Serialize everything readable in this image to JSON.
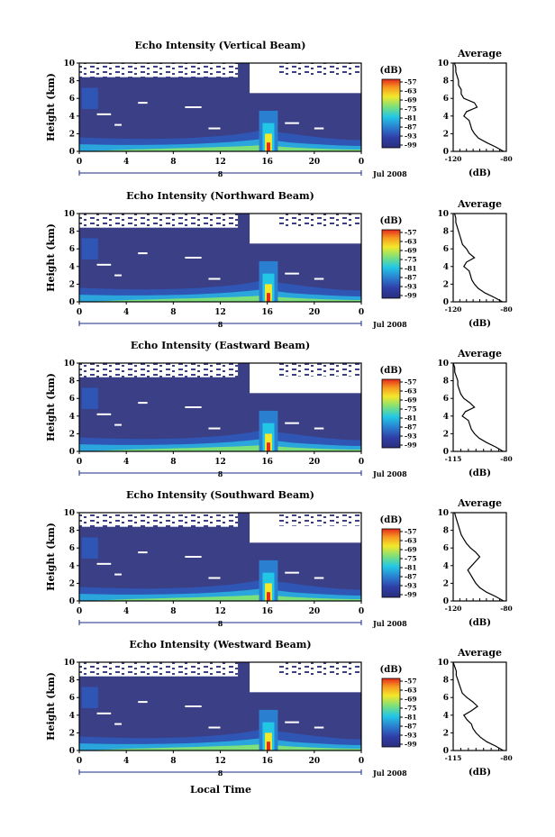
{
  "figure": {
    "bottom_label": "Local Time",
    "date_label": "Jul 2008",
    "height_label": "Height (km)",
    "avg_title": "Average",
    "avg_unit": "(dB)",
    "cb_unit": "(dB)",
    "day_label": "8"
  },
  "chart_data": [
    {
      "type": "heatmap",
      "title": "Echo Intensity (Vertical Beam)",
      "xlabel": "",
      "ylabel": "Height (km)",
      "x_ticks": [
        "0",
        "4",
        "8",
        "12",
        "16",
        "20",
        "0"
      ],
      "xlim": [
        0,
        24
      ],
      "y_ticks": [
        "0",
        "2",
        "4",
        "6",
        "8",
        "10"
      ],
      "ylim": [
        0,
        10
      ],
      "colorbar": {
        "unit": "(dB)",
        "ticks": [
          "-57",
          "-63",
          "-69",
          "-75",
          "-81",
          "-87",
          "-93",
          "-99"
        ]
      },
      "date": "Jul 2008",
      "average_profile": {
        "title": "Average",
        "xlabel": "(dB)",
        "xticks": [
          "-120",
          "-80"
        ],
        "xlim": [
          -120,
          -80
        ],
        "height_km": [
          0,
          0.5,
          1,
          1.5,
          2,
          2.5,
          3,
          3.5,
          4,
          4.5,
          5,
          5.5,
          6,
          6.5,
          7,
          7.5,
          8,
          8.5,
          9,
          9.5,
          10
        ],
        "db": [
          -82,
          -88,
          -95,
          -101,
          -104,
          -106,
          -107,
          -108,
          -112,
          -110,
          -102,
          -104,
          -112,
          -114,
          -114,
          -116,
          -116,
          -117,
          -118,
          -118,
          -119
        ]
      }
    },
    {
      "type": "heatmap",
      "title": "Echo Intensity (Northward Beam)",
      "xlabel": "",
      "ylabel": "Height (km)",
      "x_ticks": [
        "0",
        "4",
        "8",
        "12",
        "16",
        "20",
        "0"
      ],
      "xlim": [
        0,
        24
      ],
      "y_ticks": [
        "0",
        "2",
        "4",
        "6",
        "8",
        "10"
      ],
      "ylim": [
        0,
        10
      ],
      "colorbar": {
        "unit": "(dB)",
        "ticks": [
          "-57",
          "-63",
          "-69",
          "-75",
          "-81",
          "-87",
          "-93",
          "-99"
        ]
      },
      "date": "Jul 2008",
      "average_profile": {
        "title": "Average",
        "xlabel": "(dB)",
        "xticks": [
          "-120",
          "-80"
        ],
        "xlim": [
          -120,
          -80
        ],
        "height_km": [
          0,
          0.5,
          1,
          1.5,
          2,
          2.5,
          3,
          3.5,
          4,
          4.5,
          5,
          5.5,
          6,
          6.5,
          7,
          7.5,
          8,
          8.5,
          9,
          9.5,
          10
        ],
        "db": [
          -83,
          -89,
          -96,
          -101,
          -104,
          -106,
          -107,
          -108,
          -112,
          -110,
          -104,
          -108,
          -110,
          -113,
          -114,
          -115,
          -116,
          -117,
          -118,
          -118,
          -119
        ]
      }
    },
    {
      "type": "heatmap",
      "title": "Echo Intensity (Eastward Beam)",
      "xlabel": "",
      "ylabel": "Height (km)",
      "x_ticks": [
        "0",
        "4",
        "8",
        "12",
        "16",
        "20",
        "0"
      ],
      "xlim": [
        0,
        24
      ],
      "y_ticks": [
        "0",
        "2",
        "4",
        "6",
        "8",
        "10"
      ],
      "ylim": [
        0,
        10
      ],
      "colorbar": {
        "unit": "(dB)",
        "ticks": [
          "-57",
          "-63",
          "-69",
          "-75",
          "-81",
          "-87",
          "-93",
          "-99"
        ]
      },
      "date": "Jul 2008",
      "average_profile": {
        "title": "Average",
        "xlabel": "(dB)",
        "xticks": [
          "-115",
          "-80"
        ],
        "xlim": [
          -115,
          -80
        ],
        "height_km": [
          0,
          0.5,
          1,
          1.5,
          2,
          2.5,
          3,
          3.5,
          4,
          4.5,
          5,
          5.5,
          6,
          6.5,
          7,
          7.5,
          8,
          8.5,
          9,
          9.5,
          10
        ],
        "db": [
          -82,
          -87,
          -93,
          -98,
          -101,
          -103,
          -104,
          -105,
          -109,
          -107,
          -101,
          -104,
          -108,
          -110,
          -111,
          -112,
          -112,
          -113,
          -114,
          -114,
          -115
        ]
      }
    },
    {
      "type": "heatmap",
      "title": "Echo Intensity (Southward Beam)",
      "xlabel": "",
      "ylabel": "Height (km)",
      "x_ticks": [
        "0",
        "4",
        "8",
        "12",
        "16",
        "20",
        "0"
      ],
      "xlim": [
        0,
        24
      ],
      "y_ticks": [
        "0",
        "2",
        "4",
        "6",
        "8",
        "10"
      ],
      "ylim": [
        0,
        10
      ],
      "colorbar": {
        "unit": "(dB)",
        "ticks": [
          "-57",
          "-63",
          "-69",
          "-75",
          "-81",
          "-87",
          "-93",
          "-99"
        ]
      },
      "date": "Jul 2008",
      "average_profile": {
        "title": "Average",
        "xlabel": "(dB)",
        "xticks": [
          "-120",
          "-80"
        ],
        "xlim": [
          -120,
          -80
        ],
        "height_km": [
          0,
          0.5,
          1,
          1.5,
          2,
          2.5,
          3,
          3.5,
          4,
          4.5,
          5,
          5.5,
          6,
          6.5,
          7,
          7.5,
          8,
          8.5,
          9,
          9.5,
          10
        ],
        "db": [
          -82,
          -88,
          -95,
          -100,
          -103,
          -105,
          -107,
          -109,
          -106,
          -103,
          -100,
          -103,
          -107,
          -110,
          -112,
          -114,
          -115,
          -116,
          -117,
          -118,
          -119
        ]
      }
    },
    {
      "type": "heatmap",
      "title": "Echo Intensity (Westward Beam)",
      "xlabel": "Local Time",
      "ylabel": "Height (km)",
      "x_ticks": [
        "0",
        "4",
        "8",
        "12",
        "16",
        "20",
        "0"
      ],
      "xlim": [
        0,
        24
      ],
      "y_ticks": [
        "0",
        "2",
        "4",
        "6",
        "8",
        "10"
      ],
      "ylim": [
        0,
        10
      ],
      "colorbar": {
        "unit": "(dB)",
        "ticks": [
          "-57",
          "-63",
          "-69",
          "-75",
          "-81",
          "-87",
          "-93",
          "-99"
        ]
      },
      "date": "Jul 2008",
      "average_profile": {
        "title": "Average",
        "xlabel": "(dB)",
        "xticks": [
          "-115",
          "-80"
        ],
        "xlim": [
          -115,
          -80
        ],
        "height_km": [
          0,
          0.5,
          1,
          1.5,
          2,
          2.5,
          3,
          3.5,
          4,
          4.5,
          5,
          5.5,
          6,
          6.5,
          7,
          7.5,
          8,
          8.5,
          9,
          9.5,
          10
        ],
        "db": [
          -82,
          -87,
          -93,
          -97,
          -100,
          -102,
          -103,
          -106,
          -108,
          -103,
          -99,
          -102,
          -106,
          -109,
          -110,
          -111,
          -112,
          -113,
          -113,
          -114,
          -115
        ]
      }
    }
  ]
}
